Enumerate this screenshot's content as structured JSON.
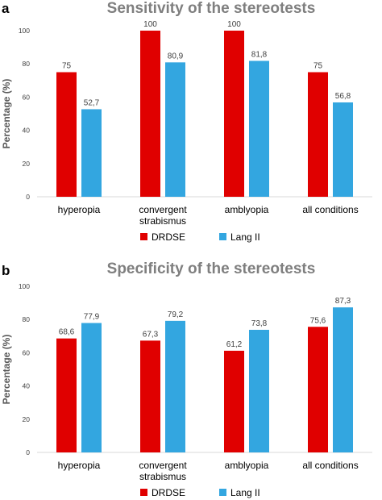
{
  "chart_data": [
    {
      "type": "bar",
      "panel_label": "a",
      "title": "Sensitivity of the stereotests",
      "ylabel": "Percentage (%)",
      "xlabel": "",
      "ylim": [
        0,
        100
      ],
      "yticks": [
        "0",
        "20",
        "40",
        "60",
        "80",
        "100"
      ],
      "categories": [
        [
          "hyperopia"
        ],
        [
          "convergent",
          "strabismus"
        ],
        [
          "amblyopia"
        ],
        [
          "all conditions"
        ]
      ],
      "series": [
        {
          "name": "DRDSE",
          "color": "#e00000",
          "values": [
            75,
            100,
            100,
            75
          ],
          "labels": [
            "75",
            "100",
            "100",
            "75"
          ]
        },
        {
          "name": "Lang II",
          "color": "#33a6e0",
          "values": [
            52.7,
            80.9,
            81.8,
            56.8
          ],
          "labels": [
            "52,7",
            "80,9",
            "81,8",
            "56,8"
          ]
        }
      ],
      "grid": false,
      "legend": "bottom"
    },
    {
      "type": "bar",
      "panel_label": "b",
      "title": "Specificity of the stereotests",
      "ylabel": "Percentage (%)",
      "xlabel": "",
      "ylim": [
        0,
        100
      ],
      "yticks": [
        "0",
        "20",
        "40",
        "60",
        "80",
        "100"
      ],
      "categories": [
        [
          "hyperopia"
        ],
        [
          "convergent",
          "strabismus"
        ],
        [
          "amblyopia"
        ],
        [
          "all conditions"
        ]
      ],
      "series": [
        {
          "name": "DRDSE",
          "color": "#e00000",
          "values": [
            68.6,
            67.3,
            61.2,
            75.6
          ],
          "labels": [
            "68,6",
            "67,3",
            "61,2",
            "75,6"
          ]
        },
        {
          "name": "Lang II",
          "color": "#33a6e0",
          "values": [
            77.9,
            79.2,
            73.8,
            87.3
          ],
          "labels": [
            "77,9",
            "79,2",
            "73,8",
            "87,3"
          ]
        }
      ],
      "grid": false,
      "legend": "bottom"
    }
  ]
}
